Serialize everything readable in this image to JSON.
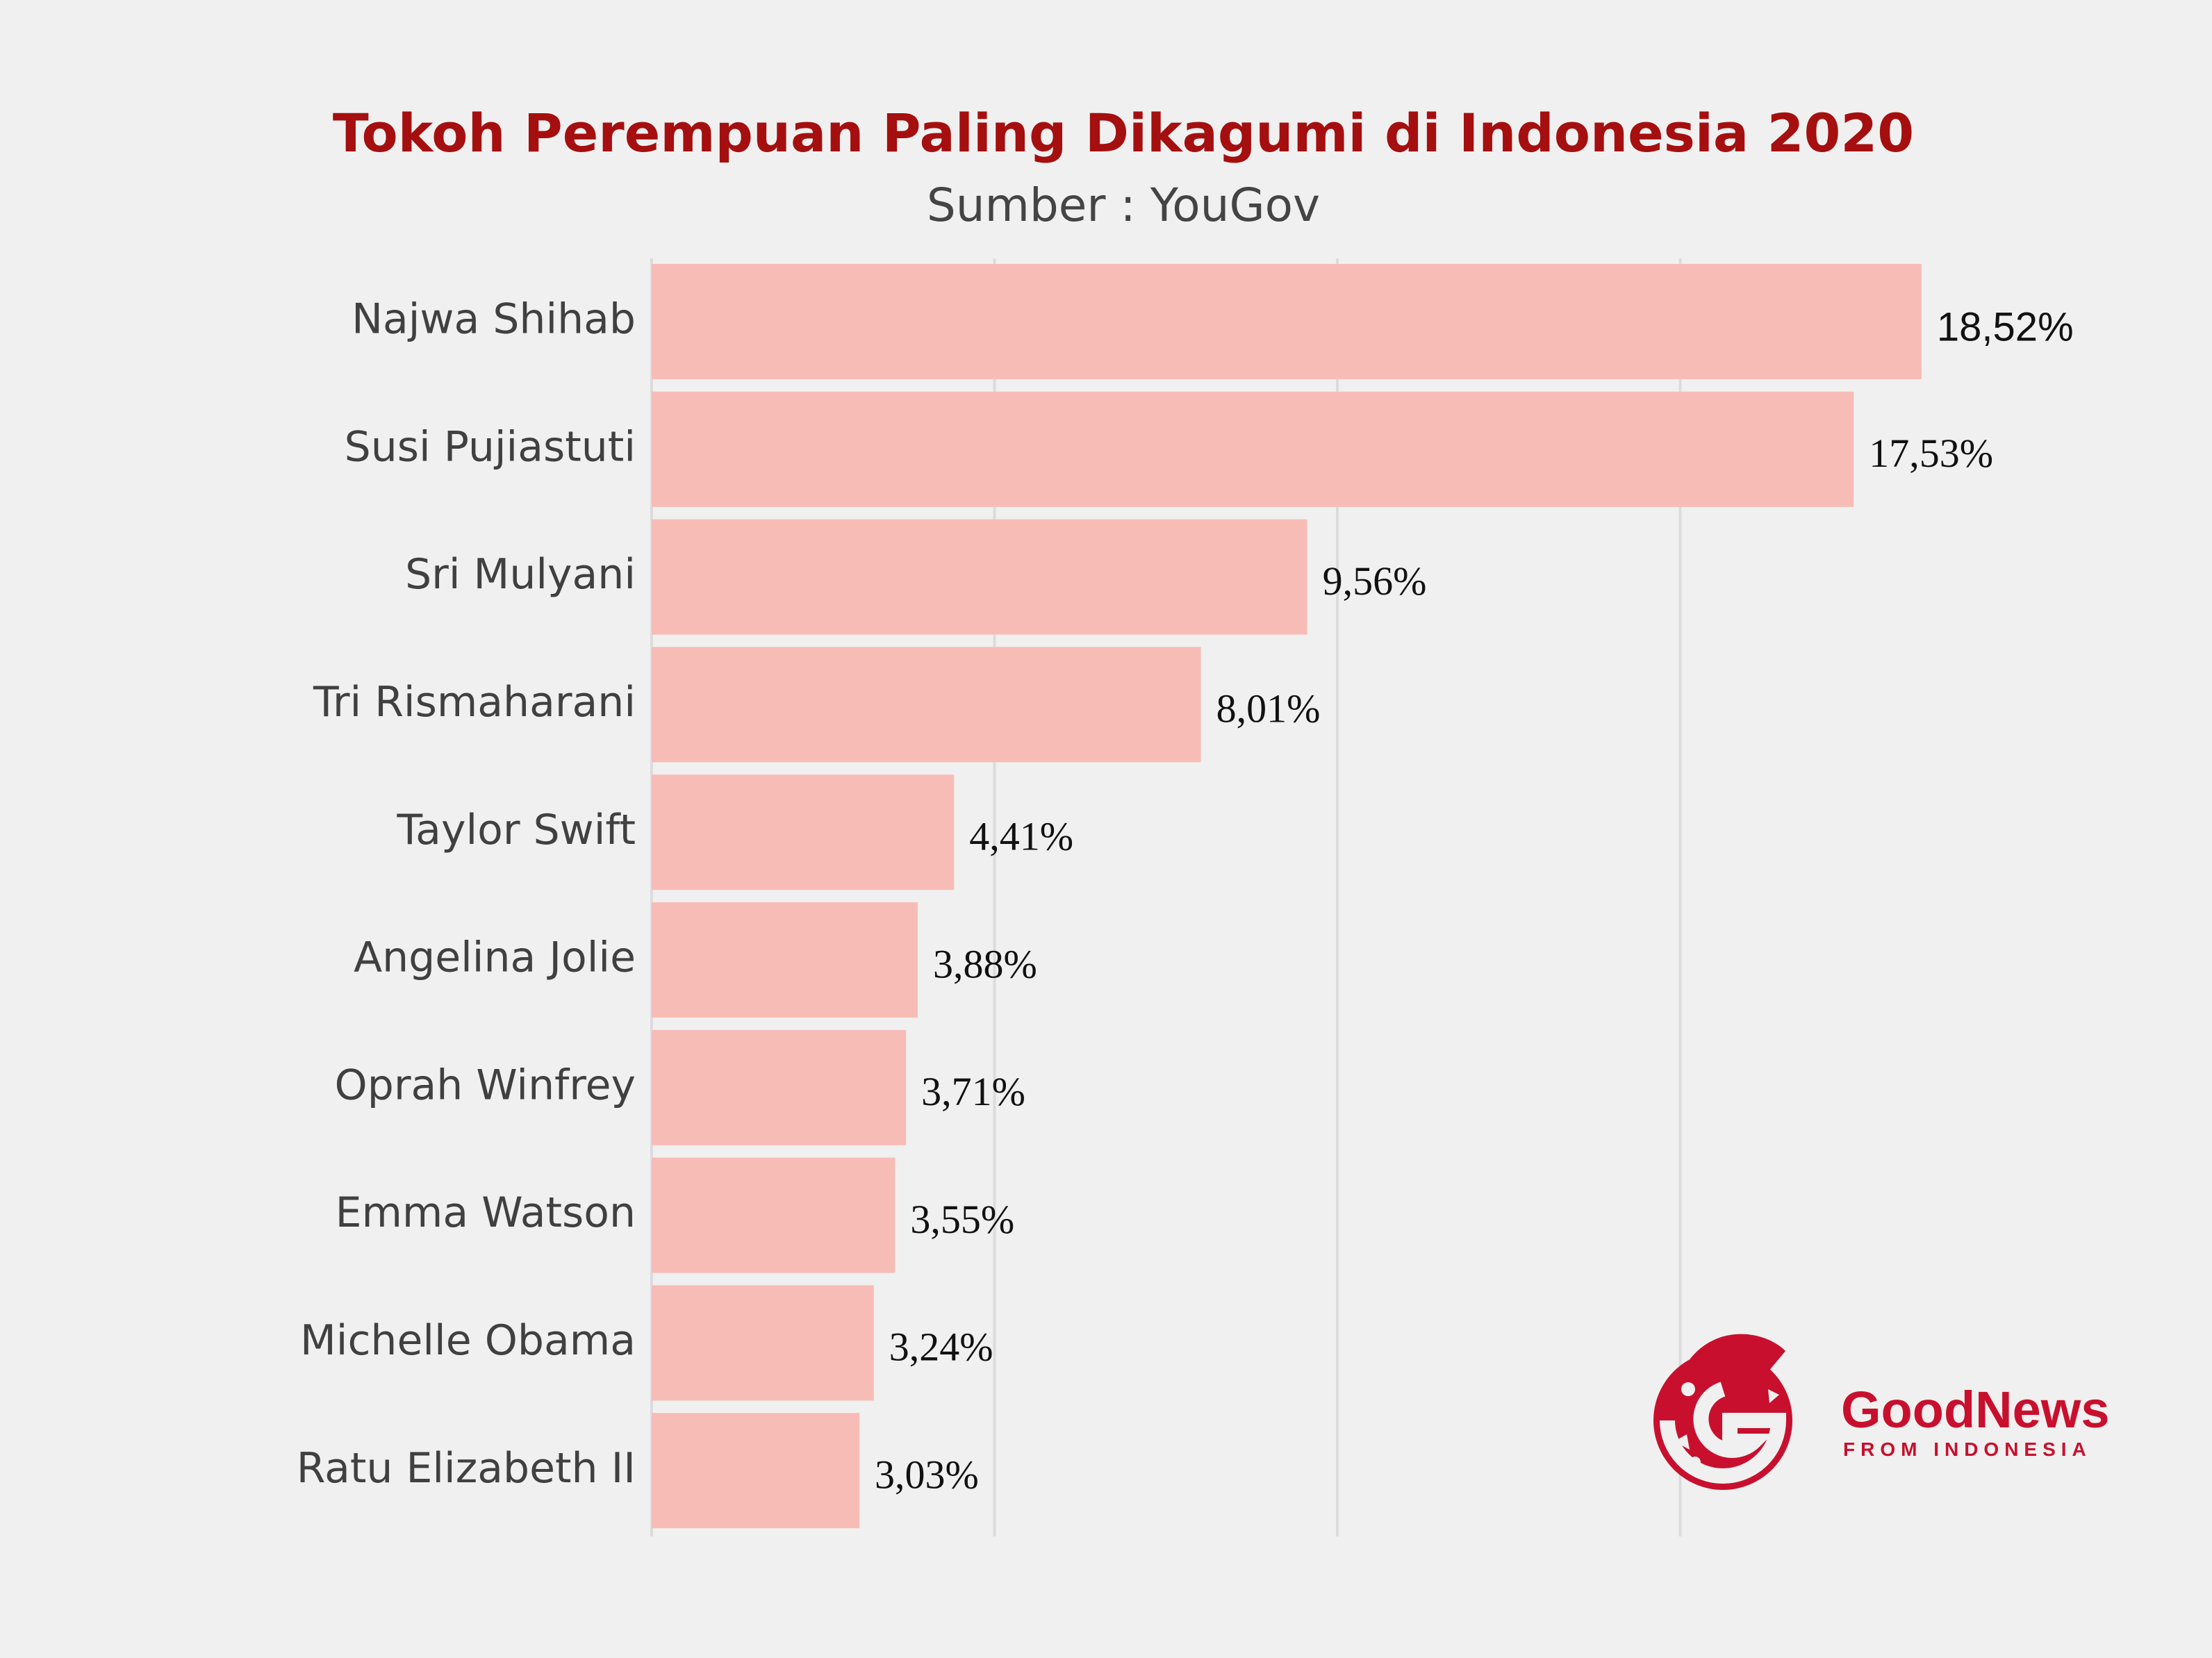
{
  "chart_data": {
    "type": "bar",
    "orientation": "horizontal",
    "title": "Tokoh Perempuan Paling Dikagumi di Indonesia 2020",
    "subtitle": "Sumber : YouGov",
    "categories": [
      "Najwa Shihab",
      "Susi Pujiastuti",
      "Sri Mulyani",
      "Tri Rismaharani",
      "Taylor Swift",
      "Angelina Jolie",
      "Oprah Winfrey",
      "Emma Watson",
      "Michelle Obama",
      "Ratu Elizabeth II"
    ],
    "values": [
      18.52,
      17.53,
      9.56,
      8.01,
      4.41,
      3.88,
      3.71,
      3.55,
      3.24,
      3.03
    ],
    "value_labels": [
      "18,52%",
      "17,53%",
      "9,56%",
      "8,01%",
      "4,41%",
      "3,88%",
      "3,71%",
      "3,55%",
      "3,24%",
      "3,03%"
    ],
    "xlim": [
      0,
      20
    ],
    "gridlines_at": [
      5,
      10,
      15
    ],
    "grid": true,
    "bar_color": "#f8bcb6",
    "grid_color": "#dcdcdc"
  },
  "logo": {
    "name": "goodnews-logo-icon",
    "wordmark": "GoodNews",
    "tagline": "FROM INDONESIA",
    "color": "#c8102e"
  }
}
